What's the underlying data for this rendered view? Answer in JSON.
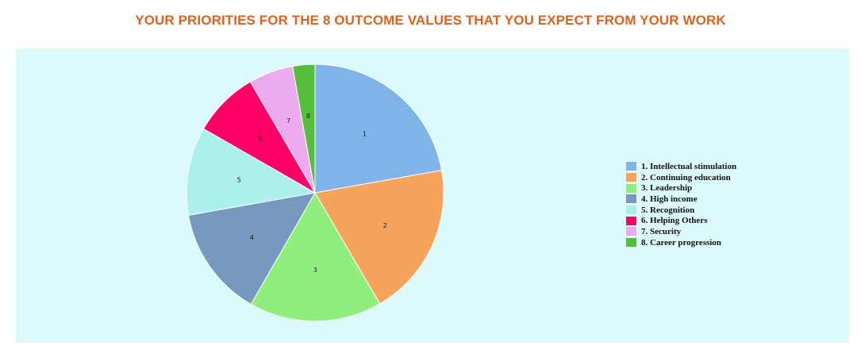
{
  "title": "YOUR PRIORITIES FOR THE 8 OUTCOME VALUES THAT YOU EXPECT FROM YOUR WORK",
  "colors": {
    "title": "#e0601e",
    "panel_background": "#dcfafc",
    "slice_border": "#ffffff"
  },
  "chart_data": {
    "type": "pie",
    "title": "YOUR PRIORITIES FOR THE 8 OUTCOME VALUES THAT YOU EXPECT FROM YOUR WORK",
    "start": "12 o'clock, clockwise",
    "legend_placement": "right",
    "slices": [
      {
        "label": "1",
        "name": "1. Intellectual stimulation",
        "value": 22.2,
        "color": "#7fb4e9"
      },
      {
        "label": "2",
        "name": "2. Continuing education",
        "value": 19.4,
        "color": "#f6a45c"
      },
      {
        "label": "3",
        "name": "3. Leadership",
        "value": 16.7,
        "color": "#90ee7d"
      },
      {
        "label": "4",
        "name": "4. High income",
        "value": 13.9,
        "color": "#7799bf"
      },
      {
        "label": "5",
        "name": "5. Recognition",
        "value": 11.1,
        "color": "#acf0ed"
      },
      {
        "label": "6",
        "name": "6. Helping Others",
        "value": 8.3,
        "color": "#ff0066"
      },
      {
        "label": "7",
        "name": "7. Security",
        "value": 5.6,
        "color": "#eeaaee"
      },
      {
        "label": "8",
        "name": "8. Career progression",
        "value": 2.8,
        "color": "#55bf3b"
      }
    ]
  }
}
